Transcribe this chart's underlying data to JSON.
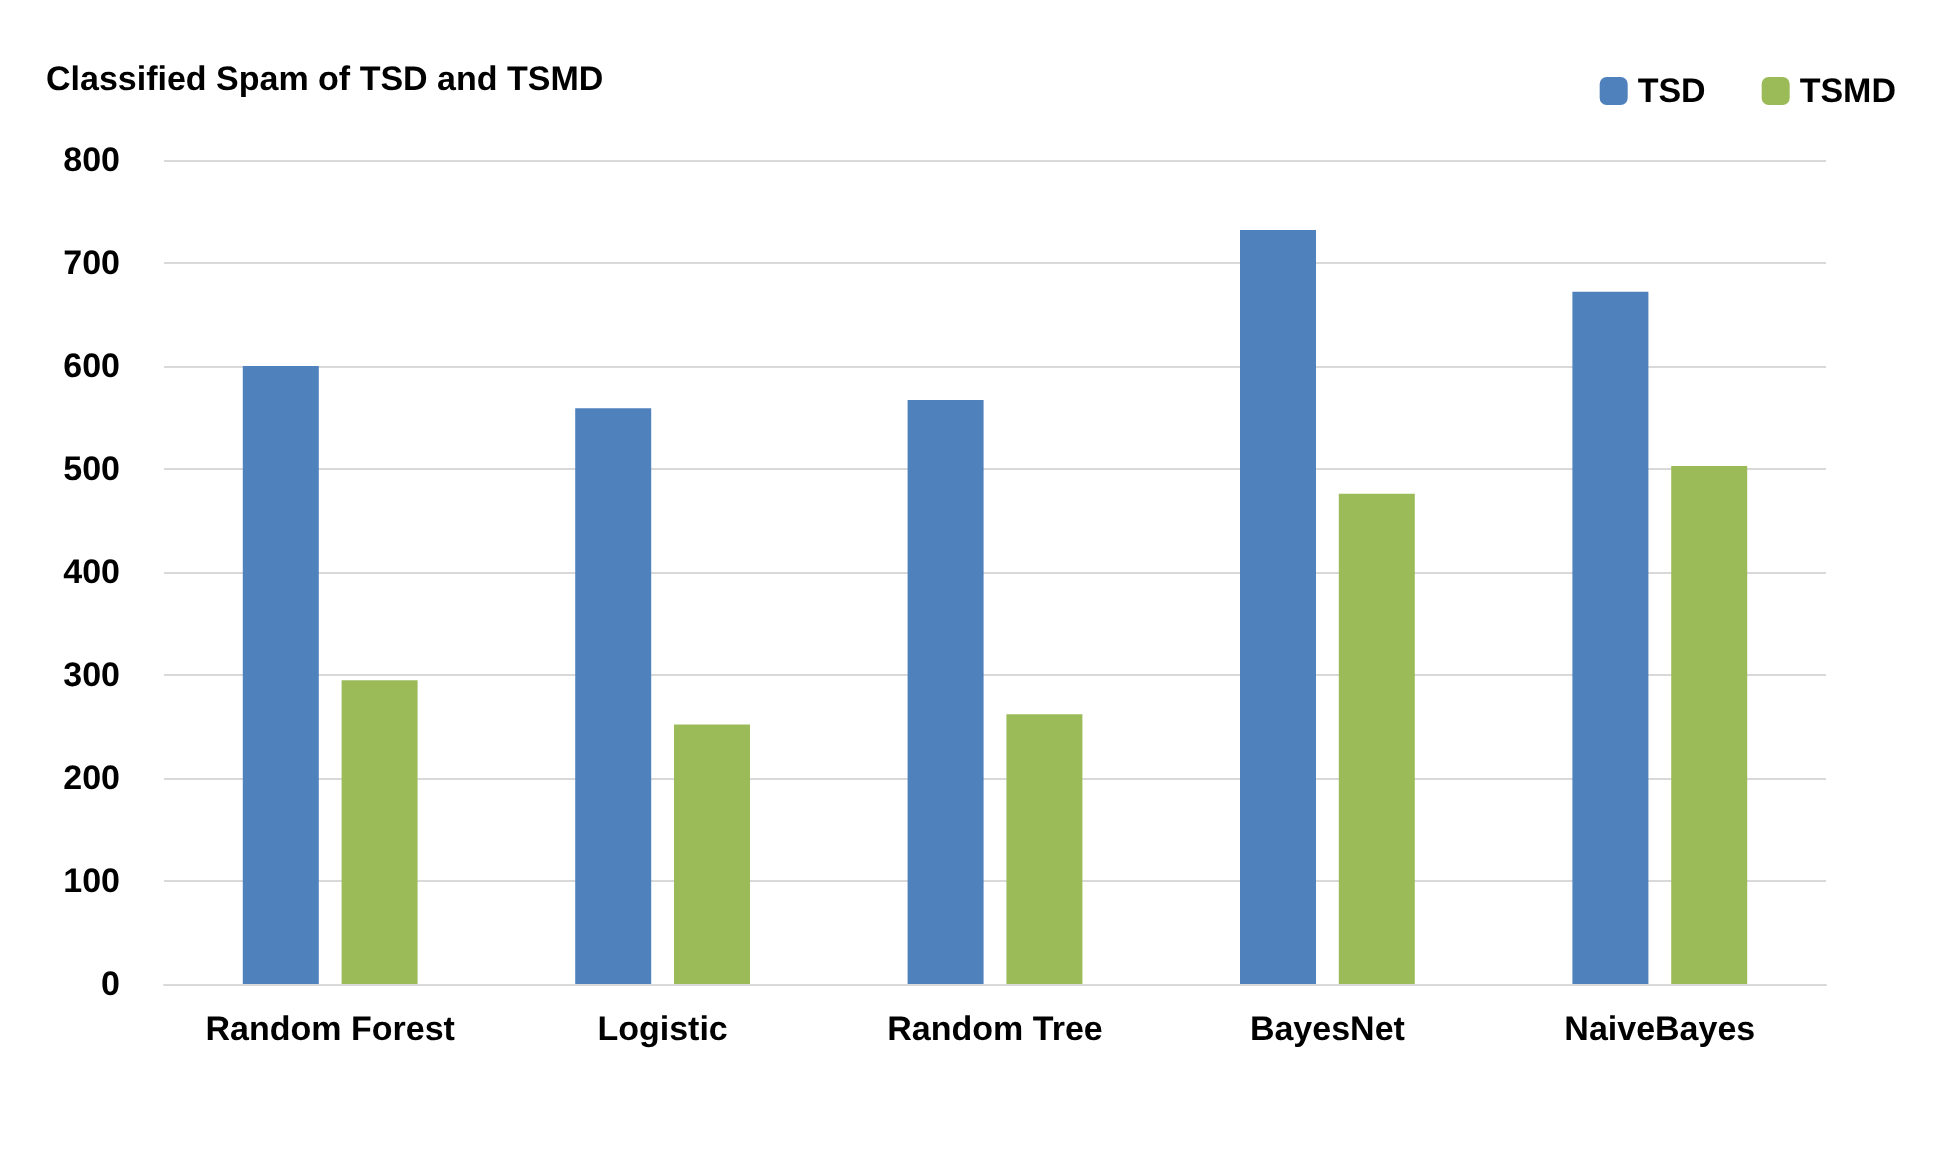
{
  "chart_data": {
    "type": "bar",
    "title": "Classified Spam of TSD and TSMD",
    "categories": [
      "Random Forest",
      "Logistic",
      "Random Tree",
      "BayesNet",
      "NaiveBayes"
    ],
    "series": [
      {
        "name": "TSD",
        "color": "#4f81bd",
        "values": [
          600,
          559,
          567,
          732,
          672
        ]
      },
      {
        "name": "TSMD",
        "color": "#9bbb59",
        "values": [
          295,
          252,
          262,
          476,
          503
        ]
      }
    ],
    "ylim": [
      0,
      800
    ],
    "yticks": [
      0,
      100,
      200,
      300,
      400,
      500,
      600,
      700,
      800
    ],
    "grid": "y",
    "legend": "top right"
  }
}
